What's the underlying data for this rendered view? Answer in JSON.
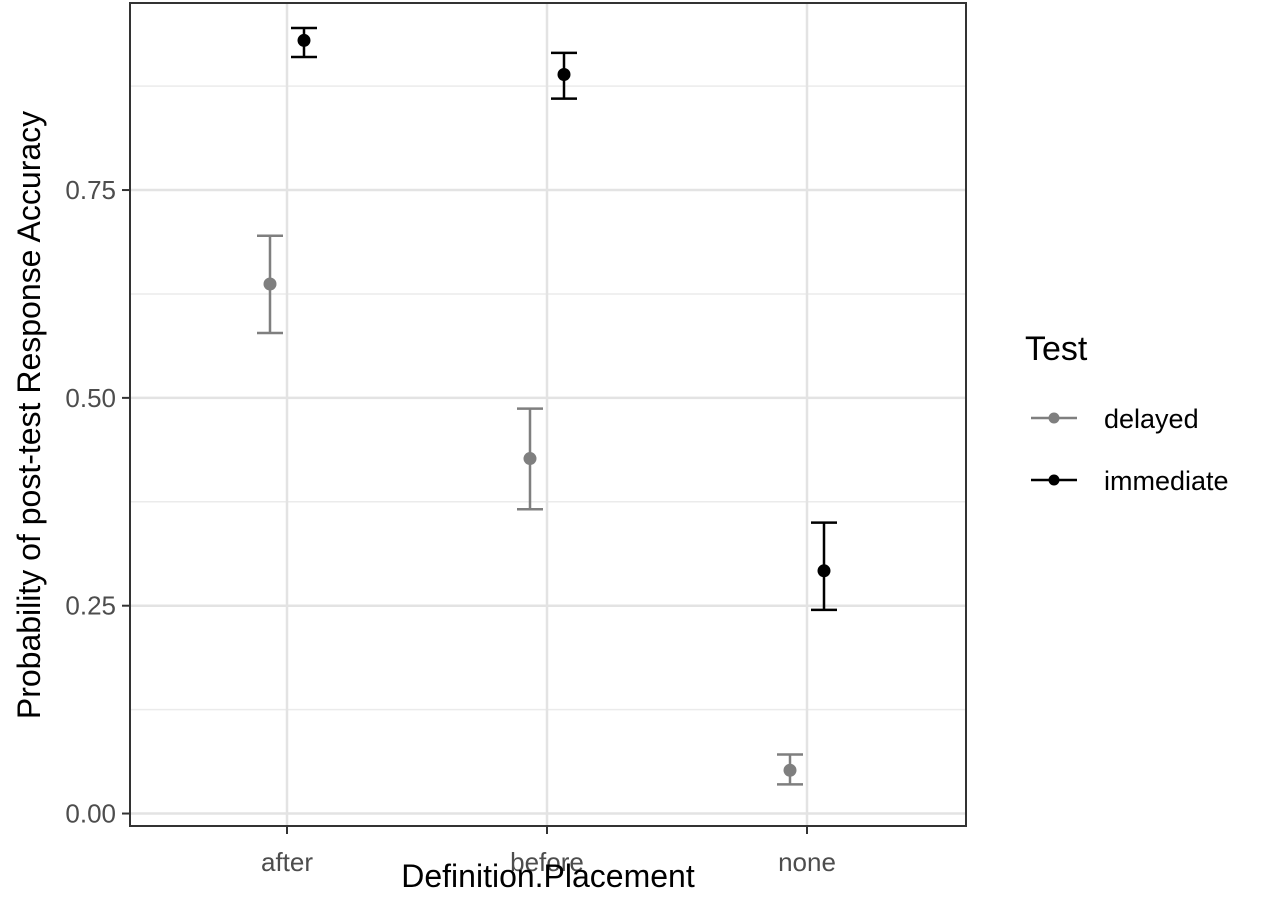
{
  "chart_data": {
    "type": "scatter",
    "subtype": "point-with-errorbars",
    "categories": [
      "after",
      "before",
      "none"
    ],
    "xlabel": "Definition.Placement",
    "ylabel": "Probability of post-test Response Accuracy",
    "ylim": [
      -0.015,
      0.975
    ],
    "yticks": [
      0.0,
      0.25,
      0.5,
      0.75
    ],
    "ytick_labels": [
      "0.00",
      "0.25",
      "0.50",
      "0.75"
    ],
    "grid": true,
    "legend": {
      "title": "Test",
      "position": "right",
      "entries": [
        "delayed",
        "immediate"
      ]
    },
    "series": [
      {
        "name": "delayed",
        "color": "#7f7f7f",
        "values": [
          0.637,
          0.427,
          0.052
        ],
        "lower": [
          0.578,
          0.366,
          0.035
        ],
        "upper": [
          0.695,
          0.487,
          0.071
        ]
      },
      {
        "name": "immediate",
        "color": "#000000",
        "values": [
          0.93,
          0.889,
          0.292
        ],
        "lower": [
          0.91,
          0.86,
          0.245
        ],
        "upper": [
          0.945,
          0.915,
          0.35
        ]
      }
    ]
  }
}
